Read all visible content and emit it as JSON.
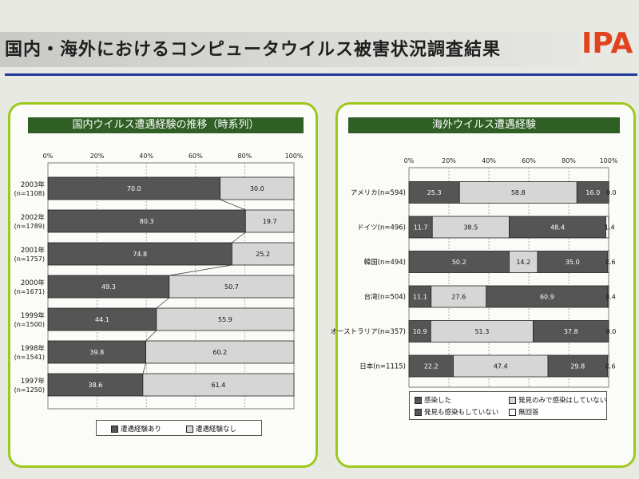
{
  "header": {
    "title": "国内・海外におけるコンピュータウイルス被害状況調査結果",
    "logo": "IPA"
  },
  "colors": {
    "dark": "#555555",
    "light": "#d6d6d6",
    "white": "#ffffff",
    "panel_border": "#9dc91b",
    "panel_title_bg": "#2f5f25",
    "rule": "#1e3a9b",
    "logo": "#e2431f"
  },
  "chart_data": [
    {
      "type": "bar",
      "orientation": "horizontal-stacked-100",
      "title": "国内ウイルス遭遇経験の推移（時系列）",
      "x_ticks": [
        "0%",
        "20%",
        "40%",
        "60%",
        "80%",
        "100%"
      ],
      "xlim": [
        0,
        100
      ],
      "categories": [
        {
          "label": "2003年",
          "n": "(n=1108)"
        },
        {
          "label": "2002年",
          "n": "(n=1789)"
        },
        {
          "label": "2001年",
          "n": "(n=1757)"
        },
        {
          "label": "2000年",
          "n": "(n=1671)"
        },
        {
          "label": "1999年",
          "n": "(n=1500)"
        },
        {
          "label": "1998年",
          "n": "(n=1541)"
        },
        {
          "label": "1997年",
          "n": "(n=1250)"
        }
      ],
      "series": [
        {
          "name": "遭遇経験あり",
          "color": "#555555",
          "values": [
            70.0,
            80.3,
            74.8,
            49.3,
            44.1,
            39.8,
            38.6
          ],
          "labels": [
            "70.0",
            "80.3",
            "74.8",
            "49.3",
            "44.1",
            "39.8",
            "38.6"
          ]
        },
        {
          "name": "遭遇経験なし",
          "color": "#d6d6d6",
          "values": [
            30.0,
            19.7,
            25.2,
            50.7,
            55.9,
            60.2,
            61.4
          ],
          "labels": [
            "30.0",
            "19.7",
            "25.2",
            "50.7",
            "55.9",
            "60.2",
            "61.4"
          ]
        }
      ],
      "legend": "bottom"
    },
    {
      "type": "bar",
      "orientation": "horizontal-stacked-100",
      "title": "海外ウイルス遭遇経験",
      "x_ticks": [
        "0%",
        "20%",
        "40%",
        "60%",
        "80%",
        "100%"
      ],
      "xlim": [
        0,
        100
      ],
      "categories": [
        {
          "label": "アメリカ(n=594)"
        },
        {
          "label": "ドイツ(n=496)"
        },
        {
          "label": "韓国(n=494)"
        },
        {
          "label": "台湾(n=504)"
        },
        {
          "label": "オーストラリア(n=357)"
        },
        {
          "label": "日本(n=1115)"
        }
      ],
      "series": [
        {
          "name": "感染した",
          "color": "#555555",
          "values": [
            25.3,
            11.7,
            50.2,
            11.1,
            10.9,
            22.2
          ],
          "labels": [
            "25.3",
            "11.7",
            "50.2",
            "11.1",
            "10.9",
            "22.2"
          ]
        },
        {
          "name": "発見のみで感染はしていない",
          "color": "#d6d6d6",
          "values": [
            58.8,
            38.5,
            14.2,
            27.6,
            51.3,
            47.4
          ],
          "labels": [
            "58.8",
            "38.5",
            "14.2",
            "27.6",
            "51.3",
            "47.4"
          ]
        },
        {
          "name": "発見も感染もしていない",
          "color": "#555555",
          "values": [
            16.0,
            48.4,
            35.0,
            60.9,
            37.8,
            29.8
          ],
          "labels": [
            "16.0",
            "48.4",
            "35.0",
            "60.9",
            "37.8",
            "29.8"
          ]
        },
        {
          "name": "無回答",
          "color": "#ffffff",
          "values": [
            0.0,
            1.4,
            0.6,
            0.4,
            0.0,
            0.6
          ],
          "labels": [
            "0.0",
            "1.4",
            "0.6",
            "0.4",
            "0.0",
            "0.6"
          ]
        }
      ],
      "legend": "bottom"
    }
  ]
}
